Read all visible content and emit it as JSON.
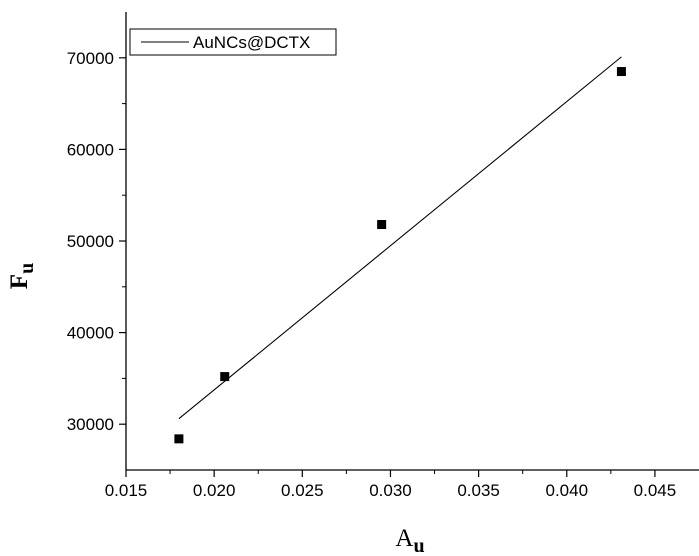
{
  "chart_data": {
    "type": "scatter",
    "title": "",
    "xlabel": {
      "main": "A",
      "sub": "u"
    },
    "ylabel": {
      "main": "F",
      "sub": "u"
    },
    "xlim": [
      0.015,
      0.0475
    ],
    "ylim": [
      25000,
      75000
    ],
    "x_ticks": [
      0.015,
      0.02,
      0.025,
      0.03,
      0.035,
      0.04,
      0.045
    ],
    "x_tick_labels": [
      "0.015",
      "0.020",
      "0.025",
      "0.030",
      "0.035",
      "0.040",
      "0.045"
    ],
    "y_ticks": [
      30000,
      40000,
      50000,
      60000,
      70000
    ],
    "y_tick_labels": [
      "30000",
      "40000",
      "50000",
      "60000",
      "70000"
    ],
    "grid": false,
    "legend": {
      "position": "top-left",
      "entries": [
        "AuNCs@DCTX"
      ]
    },
    "series": [
      {
        "name": "AuNCs@DCTX",
        "points": [
          {
            "x": 0.018,
            "y": 28400
          },
          {
            "x": 0.0206,
            "y": 35200
          },
          {
            "x": 0.0295,
            "y": 51800
          },
          {
            "x": 0.0431,
            "y": 68500
          }
        ],
        "fit": [
          {
            "x": 0.018,
            "y": 30600
          },
          {
            "x": 0.0431,
            "y": 70100
          }
        ]
      }
    ],
    "colors": {
      "line": "#000000",
      "marker": "#000000"
    }
  }
}
